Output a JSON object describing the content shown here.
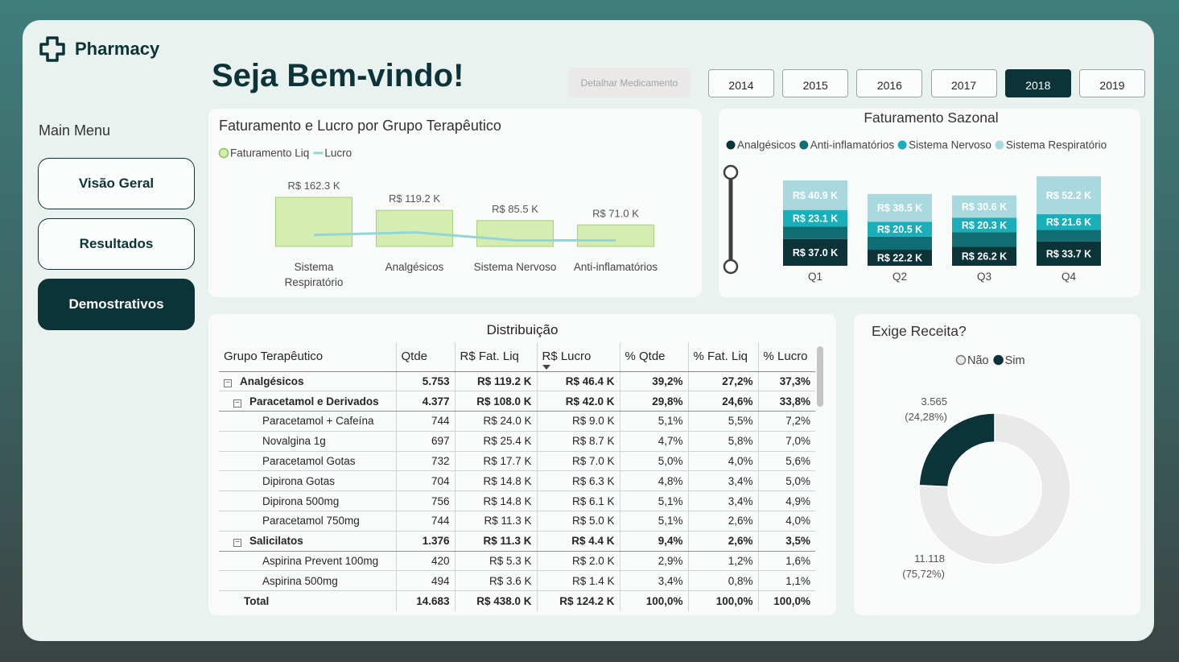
{
  "header": {
    "brand": "Pharmacy",
    "title": "Seja Bem-vindo!",
    "detail_button": "Detalhar Medicamento"
  },
  "menu": {
    "title": "Main Menu",
    "items": [
      "Visão Geral",
      "Resultados",
      "Demostrativos"
    ],
    "active": 2
  },
  "years": {
    "items": [
      "2014",
      "2015",
      "2016",
      "2017",
      "2018",
      "2019"
    ],
    "selected": 4
  },
  "chart_data": [
    {
      "type": "bar",
      "title": "Faturamento e Lucro por Grupo Terapêutico",
      "categories": [
        "Sistema Respiratório",
        "Analgésicos",
        "Sistema Nervoso",
        "Anti-inflamatórios"
      ],
      "series": [
        {
          "name": "Faturamento Liq",
          "type": "bar",
          "color": "#d5edb1",
          "values": [
            162.3,
            119.2,
            85.5,
            71.0
          ],
          "value_labels": [
            "R$ 162.3 K",
            "R$ 119.2 K",
            "R$ 85.5 K",
            "R$ 71.0 K"
          ]
        },
        {
          "name": "Lucro",
          "type": "line",
          "color": "#93d6d4",
          "values": [
            38,
            46.4,
            20,
            20
          ]
        }
      ]
    },
    {
      "type": "stacked-bar",
      "title": "Faturamento Sazonal",
      "categories": [
        "Q1",
        "Q2",
        "Q3",
        "Q4"
      ],
      "series": [
        {
          "name": "Analgésicos",
          "color": "#0b3338",
          "values": [
            37.0,
            22.2,
            26.2,
            33.7
          ],
          "value_labels": [
            "R$ 37.0 K",
            "R$ 22.2 K",
            "R$ 26.2 K",
            "R$ 33.7 K"
          ]
        },
        {
          "name": "Anti-inflamatórios",
          "color": "#106d74",
          "values": [
            17,
            18,
            20,
            16
          ]
        },
        {
          "name": "Sistema Nervoso",
          "color": "#1aaebb",
          "values": [
            23.1,
            20.5,
            20.3,
            21.6
          ],
          "value_labels": [
            "R$ 23.1 K",
            "R$ 20.5 K",
            "R$ 20.3 K",
            "R$ 21.6 K"
          ]
        },
        {
          "name": "Sistema Respiratório",
          "color": "#a9d9de",
          "values": [
            40.9,
            38.5,
            30.6,
            52.2
          ],
          "value_labels": [
            "R$ 40.9 K",
            "R$ 38.5 K",
            "R$ 30.6 K",
            "R$ 52.2 K"
          ]
        }
      ]
    },
    {
      "type": "donut",
      "title": "Exige Receita?",
      "categories": [
        "Não",
        "Sim"
      ],
      "colors": [
        "#e9e9e9",
        "#0b3338"
      ],
      "values": [
        11118,
        3565
      ],
      "value_labels": [
        "11.118",
        "3.565"
      ],
      "percents": [
        75.72,
        24.28
      ],
      "percent_labels": [
        "(75,72%)",
        "(24,28%)"
      ]
    }
  ],
  "table": {
    "title": "Distribuição",
    "columns": [
      "Grupo Terapêutico",
      "Qtde",
      "R$ Fat. Liq",
      "R$ Lucro",
      "% Qtde",
      "% Fat. Liq",
      "% Lucro"
    ],
    "groups": [
      {
        "cells": [
          "Analgésicos",
          "5.753",
          "R$ 119.2 K",
          "R$ 46.4 K",
          "39,2%",
          "27,2%",
          "37,3%"
        ],
        "subgroups": [
          {
            "cells": [
              "Paracetamol e Derivados",
              "4.377",
              "R$ 108.0 K",
              "R$ 42.0 K",
              "29,8%",
              "24,6%",
              "33,8%"
            ],
            "rows": [
              [
                "Paracetamol + Cafeína",
                "744",
                "R$ 24.0 K",
                "R$ 9.0 K",
                "5,1%",
                "5,5%",
                "7,2%"
              ],
              [
                "Novalgina 1g",
                "697",
                "R$ 25.4 K",
                "R$ 8.7 K",
                "4,7%",
                "5,8%",
                "7,0%"
              ],
              [
                "Paracetamol Gotas",
                "732",
                "R$ 17.7 K",
                "R$ 7.0 K",
                "5,0%",
                "4,0%",
                "5,6%"
              ],
              [
                "Dipirona Gotas",
                "704",
                "R$ 14.8 K",
                "R$ 6.3 K",
                "4,8%",
                "3,4%",
                "5,0%"
              ],
              [
                "Dipirona 500mg",
                "756",
                "R$ 14.8 K",
                "R$ 6.1 K",
                "5,1%",
                "3,4%",
                "4,9%"
              ],
              [
                "Paracetamol 750mg",
                "744",
                "R$ 11.3 K",
                "R$ 5.0 K",
                "5,1%",
                "2,6%",
                "4,0%"
              ]
            ]
          },
          {
            "cells": [
              "Salicilatos",
              "1.376",
              "R$ 11.3 K",
              "R$ 4.4 K",
              "9,4%",
              "2,6%",
              "3,5%"
            ],
            "rows": [
              [
                "Aspirina Prevent 100mg",
                "420",
                "R$ 5.3 K",
                "R$ 2.0 K",
                "2,9%",
                "1,2%",
                "1,6%"
              ],
              [
                "Aspirina 500mg",
                "494",
                "R$ 3.6 K",
                "R$ 1.4 K",
                "3,4%",
                "0,8%",
                "1,1%"
              ]
            ]
          }
        ]
      }
    ],
    "total": [
      "Total",
      "14.683",
      "R$ 438.0 K",
      "R$ 124.2 K",
      "100,0%",
      "100,0%",
      "100,0%"
    ]
  }
}
